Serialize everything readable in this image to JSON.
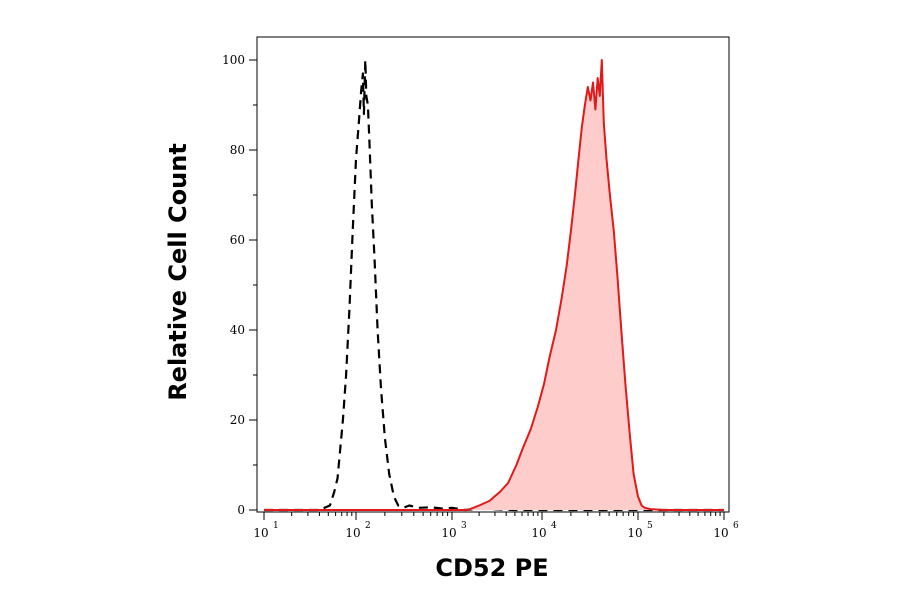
{
  "chart_data": {
    "type": "area",
    "xlabel": "CD52 PE",
    "ylabel": "Relative Cell Count",
    "x_scale": "log",
    "xlim": [
      10,
      1000000
    ],
    "ylim": [
      0,
      100
    ],
    "grid": false,
    "x_ticks": [
      {
        "value": 10,
        "base": "10",
        "exp": "1"
      },
      {
        "value": 100,
        "base": "10",
        "exp": "2"
      },
      {
        "value": 1000,
        "base": "10",
        "exp": "3"
      },
      {
        "value": 10000,
        "base": "10",
        "exp": "4"
      },
      {
        "value": 100000,
        "base": "10",
        "exp": "5"
      },
      {
        "value": 1000000,
        "base": "10",
        "exp": "6"
      }
    ],
    "y_ticks": [
      {
        "value": 0,
        "label": "0"
      },
      {
        "value": 20,
        "label": "20"
      },
      {
        "value": 40,
        "label": "40"
      },
      {
        "value": 60,
        "label": "60"
      },
      {
        "value": 80,
        "label": "80"
      },
      {
        "value": 100,
        "label": "100"
      }
    ],
    "series": [
      {
        "style": "dashed",
        "color": "#000000",
        "fill": "none",
        "x": [
          10,
          40,
          52,
          58,
          63,
          67,
          72,
          78,
          85,
          92,
          100,
          107,
          113,
          118,
          121,
          125,
          128,
          133,
          138,
          146,
          156,
          168,
          182,
          200,
          222,
          248,
          275,
          310,
          360,
          450,
          600,
          800,
          1000,
          1400,
          2000,
          5000,
          100000,
          1000000
        ],
        "y": [
          0,
          0,
          1,
          4,
          7,
          13,
          20,
          30,
          45,
          62,
          78,
          86,
          93,
          97,
          88,
          100,
          92,
          90,
          82,
          68,
          56,
          40,
          27,
          16,
          8,
          3,
          1,
          0.5,
          1,
          0.5,
          0.6,
          0.3,
          0.5,
          0,
          0.3,
          0,
          0,
          0
        ]
      },
      {
        "style": "solid",
        "color": "#e11919",
        "fill": "#ffcccc",
        "x": [
          10,
          1500,
          2000,
          2600,
          3400,
          4200,
          5200,
          6200,
          7500,
          9000,
          10500,
          12000,
          14000,
          16000,
          18000,
          20000,
          22000,
          24000,
          26000,
          28000,
          30000,
          32000,
          34000,
          36000,
          38000,
          40000,
          42000,
          44000,
          47000,
          51000,
          56000,
          61000,
          67000,
          74000,
          82000,
          90000,
          100000,
          110000,
          120000,
          140000,
          200000,
          1000000
        ],
        "y": [
          0,
          0,
          1,
          2,
          4,
          6,
          10,
          14,
          18,
          23,
          28,
          34,
          40,
          47,
          54,
          62,
          70,
          78,
          85,
          90,
          94,
          91,
          95,
          89,
          96,
          92,
          100,
          86,
          78,
          70,
          62,
          52,
          40,
          28,
          17,
          8,
          3,
          1,
          0.5,
          0.2,
          0,
          0
        ]
      }
    ]
  }
}
